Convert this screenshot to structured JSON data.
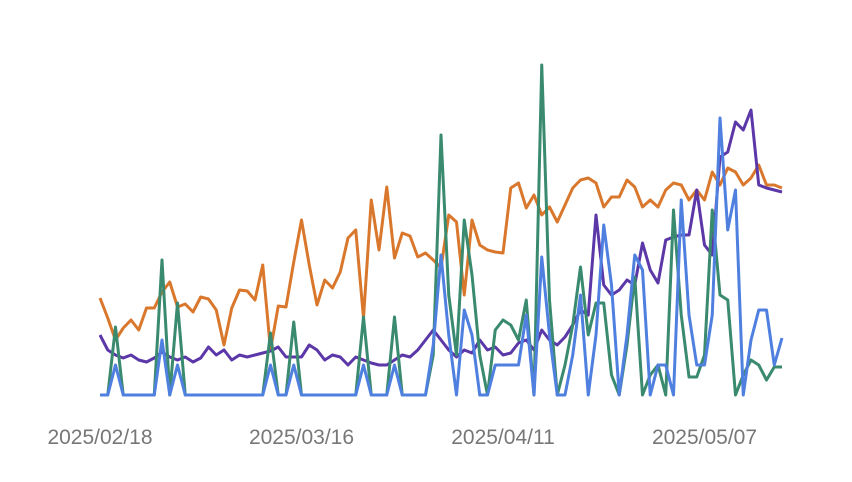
{
  "chart_data": {
    "type": "line",
    "x": [
      "2025/02/18",
      "2025/02/19",
      "2025/02/20",
      "2025/02/21",
      "2025/02/22",
      "2025/02/23",
      "2025/02/24",
      "2025/02/25",
      "2025/02/26",
      "2025/02/27",
      "2025/02/28",
      "2025/03/01",
      "2025/03/02",
      "2025/03/03",
      "2025/03/04",
      "2025/03/05",
      "2025/03/06",
      "2025/03/07",
      "2025/03/08",
      "2025/03/09",
      "2025/03/10",
      "2025/03/11",
      "2025/03/12",
      "2025/03/13",
      "2025/03/14",
      "2025/03/15",
      "2025/03/16",
      "2025/03/17",
      "2025/03/18",
      "2025/03/19",
      "2025/03/20",
      "2025/03/21",
      "2025/03/22",
      "2025/03/23",
      "2025/03/24",
      "2025/03/25",
      "2025/03/26",
      "2025/03/27",
      "2025/03/28",
      "2025/03/29",
      "2025/03/30",
      "2025/03/31",
      "2025/04/01",
      "2025/04/02",
      "2025/04/03",
      "2025/04/04",
      "2025/04/05",
      "2025/04/06",
      "2025/04/07",
      "2025/04/08",
      "2025/04/09",
      "2025/04/10",
      "2025/04/11",
      "2025/04/12",
      "2025/04/13",
      "2025/04/14",
      "2025/04/15",
      "2025/04/16",
      "2025/04/17",
      "2025/04/18",
      "2025/04/19",
      "2025/04/20",
      "2025/04/21",
      "2025/04/22",
      "2025/04/23",
      "2025/04/24",
      "2025/04/25",
      "2025/04/26",
      "2025/04/27",
      "2025/04/28",
      "2025/04/29",
      "2025/04/30",
      "2025/05/01",
      "2025/05/02",
      "2025/05/03",
      "2025/05/04",
      "2025/05/05",
      "2025/05/06",
      "2025/05/07",
      "2025/05/08",
      "2025/05/09",
      "2025/05/10",
      "2025/05/11",
      "2025/05/12",
      "2025/05/13",
      "2025/05/14",
      "2025/05/15",
      "2025/05/16",
      "2025/05/17"
    ],
    "ylim": [
      0,
      340
    ],
    "series": [
      {
        "color": "#d9782d",
        "values": [
          97,
          77,
          55,
          67,
          75,
          65,
          87,
          87,
          103,
          113,
          88,
          91,
          83,
          98,
          96,
          85,
          50,
          87,
          105,
          104,
          95,
          130,
          45,
          89,
          88,
          133,
          175,
          130,
          90,
          115,
          107,
          123,
          157,
          165,
          77,
          195,
          145,
          208,
          137,
          162,
          159,
          138,
          142,
          135,
          127,
          180,
          173,
          100,
          175,
          150,
          145,
          143,
          142,
          207,
          212,
          187,
          200,
          180,
          188,
          173,
          190,
          207,
          215,
          217,
          212,
          188,
          198,
          198,
          215,
          208,
          188,
          195,
          188,
          205,
          212,
          210,
          195,
          205,
          195,
          223,
          210,
          227,
          223,
          210,
          217,
          230,
          210,
          210,
          207
        ]
      },
      {
        "color": "#5b37a8",
        "values": [
          60,
          45,
          40,
          37,
          40,
          35,
          33,
          37,
          43,
          38,
          35,
          38,
          33,
          37,
          48,
          40,
          45,
          35,
          40,
          38,
          40,
          42,
          44,
          48,
          38,
          38,
          38,
          50,
          45,
          35,
          40,
          38,
          30,
          38,
          35,
          32,
          30,
          30,
          35,
          40,
          38,
          45,
          55,
          65,
          55,
          45,
          38,
          45,
          42,
          55,
          45,
          48,
          40,
          42,
          52,
          55,
          45,
          65,
          55,
          50,
          58,
          70,
          85,
          80,
          180,
          110,
          100,
          105,
          115,
          110,
          152,
          125,
          112,
          155,
          158,
          160,
          160,
          205,
          150,
          140,
          238,
          243,
          273,
          265,
          285,
          210,
          207,
          205,
          203
        ]
      },
      {
        "color": "#3a8a6f",
        "values": [
          0,
          0,
          68,
          0,
          0,
          0,
          0,
          0,
          135,
          0,
          92,
          0,
          0,
          0,
          0,
          0,
          0,
          0,
          0,
          0,
          0,
          0,
          62,
          0,
          0,
          73,
          0,
          0,
          0,
          0,
          0,
          0,
          0,
          0,
          78,
          0,
          0,
          0,
          78,
          0,
          0,
          0,
          0,
          40,
          260,
          100,
          40,
          175,
          120,
          40,
          0,
          65,
          75,
          70,
          55,
          95,
          0,
          330,
          95,
          0,
          30,
          70,
          128,
          60,
          92,
          92,
          20,
          0,
          50,
          118,
          0,
          20,
          30,
          0,
          185,
          80,
          18,
          18,
          40,
          185,
          100,
          95,
          0,
          20,
          35,
          30,
          15,
          28,
          28
        ]
      },
      {
        "color": "#4f80e0",
        "values": [
          0,
          0,
          30,
          0,
          0,
          0,
          0,
          0,
          55,
          0,
          30,
          0,
          0,
          0,
          0,
          0,
          0,
          0,
          0,
          0,
          0,
          0,
          30,
          0,
          0,
          30,
          0,
          0,
          0,
          0,
          0,
          0,
          0,
          0,
          30,
          0,
          0,
          0,
          30,
          0,
          0,
          0,
          0,
          50,
          140,
          60,
          0,
          85,
          60,
          0,
          0,
          30,
          30,
          30,
          30,
          80,
          0,
          138,
          60,
          0,
          0,
          40,
          100,
          0,
          60,
          170,
          110,
          0,
          60,
          140,
          125,
          0,
          30,
          30,
          0,
          195,
          80,
          30,
          30,
          80,
          277,
          165,
          205,
          0,
          55,
          85,
          85,
          30,
          57
        ]
      }
    ]
  }
}
